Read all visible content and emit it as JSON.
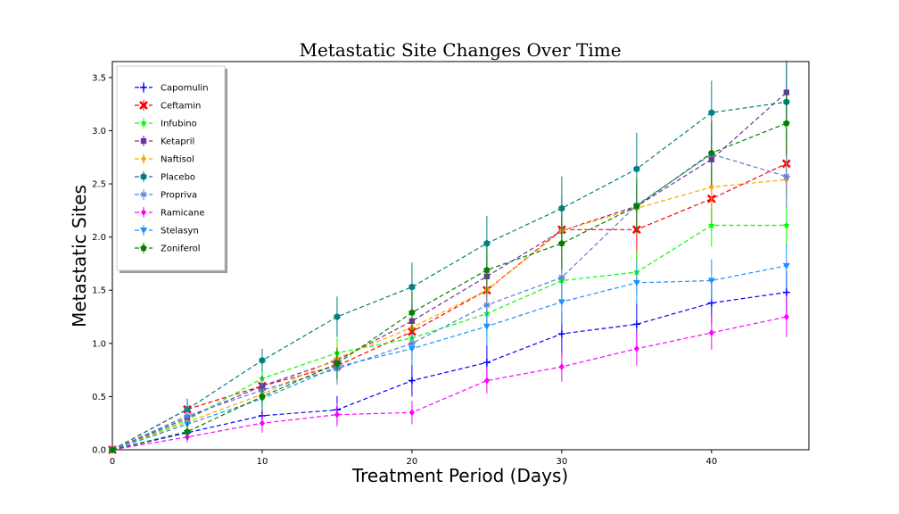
{
  "chart_data": {
    "type": "line",
    "title": "Metastatic Site Changes Over Time",
    "xlabel": "Treatment Period (Days)",
    "ylabel": "Metastatic Sites",
    "x": [
      0,
      5,
      10,
      15,
      20,
      25,
      30,
      35,
      40,
      45
    ],
    "xlim": [
      0,
      46.5
    ],
    "ylim": [
      0,
      3.65
    ],
    "xticks": [
      0,
      10,
      20,
      30,
      40
    ],
    "xtick_labels": [
      "0",
      "10",
      "20",
      "30",
      "40"
    ],
    "yticks": [
      0,
      0.5,
      1.0,
      1.5,
      2.0,
      2.5,
      3.0,
      3.5
    ],
    "ytick_labels": [
      "0.0",
      "0.5",
      "1.0",
      "1.5",
      "2.0",
      "2.5",
      "3.0",
      "3.5"
    ],
    "grid": false,
    "legend_position": "top-left",
    "series": [
      {
        "name": "Capomulin",
        "color": "#0000ff",
        "marker": "plus",
        "values": [
          0.0,
          0.16,
          0.32,
          0.375,
          0.65,
          0.82,
          1.09,
          1.18,
          1.38,
          1.48
        ],
        "errors": [
          0,
          0.07,
          0.1,
          0.13,
          0.15,
          0.16,
          0.2,
          0.2,
          0.2,
          0.2
        ]
      },
      {
        "name": "Ceftamin",
        "color": "#ff0000",
        "marker": "x",
        "values": [
          0.0,
          0.38,
          0.6,
          0.79,
          1.11,
          1.5,
          2.07,
          2.07,
          2.36,
          2.69
        ],
        "errors": [
          0,
          0.1,
          0.1,
          0.12,
          0.14,
          0.2,
          0.3,
          0.3,
          0.3,
          0.3
        ]
      },
      {
        "name": "Infubino",
        "color": "#00ff00",
        "marker": "star",
        "values": [
          0.0,
          0.28,
          0.67,
          0.91,
          1.05,
          1.28,
          1.59,
          1.67,
          2.11,
          2.11
        ],
        "errors": [
          0,
          0.09,
          0.1,
          0.14,
          0.15,
          0.2,
          0.25,
          0.2,
          0.2,
          0.2
        ]
      },
      {
        "name": "Ketapril",
        "color": "#7030a0",
        "marker": "square",
        "values": [
          0.0,
          0.3,
          0.6,
          0.84,
          1.21,
          1.63,
          2.06,
          2.29,
          2.73,
          3.36
        ],
        "errors": [
          0,
          0.09,
          0.1,
          0.12,
          0.15,
          0.2,
          0.2,
          0.2,
          0.25,
          0.3
        ]
      },
      {
        "name": "Naftisol",
        "color": "#ffa500",
        "marker": "diamond",
        "values": [
          0.0,
          0.26,
          0.52,
          0.86,
          1.15,
          1.5,
          2.06,
          2.27,
          2.47,
          2.54
        ],
        "errors": [
          0,
          0.09,
          0.1,
          0.14,
          0.15,
          0.2,
          0.2,
          0.2,
          0.2,
          0.2
        ]
      },
      {
        "name": "Placebo",
        "color": "#008080",
        "marker": "hexagon",
        "values": [
          0.0,
          0.38,
          0.84,
          1.25,
          1.53,
          1.94,
          2.27,
          2.64,
          3.17,
          3.27
        ],
        "errors": [
          0,
          0.1,
          0.11,
          0.19,
          0.23,
          0.26,
          0.3,
          0.34,
          0.3,
          0.36
        ]
      },
      {
        "name": "Propriva",
        "color": "#5a7fd8",
        "marker": "asterisk",
        "values": [
          0.0,
          0.32,
          0.56,
          0.76,
          1.0,
          1.36,
          1.62,
          2.3,
          2.78,
          2.57
        ],
        "errors": [
          0,
          0.09,
          0.1,
          0.15,
          0.15,
          0.2,
          0.2,
          0.2,
          0.3,
          0.3
        ]
      },
      {
        "name": "Ramicane",
        "color": "#ff00ff",
        "marker": "diamond",
        "values": [
          0.0,
          0.12,
          0.25,
          0.33,
          0.35,
          0.65,
          0.78,
          0.95,
          1.1,
          1.25
        ],
        "errors": [
          0,
          0.05,
          0.09,
          0.11,
          0.11,
          0.12,
          0.14,
          0.16,
          0.16,
          0.19
        ]
      },
      {
        "name": "Stelasyn",
        "color": "#1e90ff",
        "marker": "triangle-down",
        "values": [
          0.0,
          0.24,
          0.48,
          0.78,
          0.95,
          1.16,
          1.39,
          1.57,
          1.59,
          1.73
        ],
        "errors": [
          0,
          0.09,
          0.1,
          0.12,
          0.15,
          0.18,
          0.2,
          0.2,
          0.2,
          0.2
        ]
      },
      {
        "name": "Zoniferol",
        "color": "#008000",
        "marker": "pentagon",
        "values": [
          0.0,
          0.17,
          0.5,
          0.81,
          1.29,
          1.69,
          1.94,
          2.29,
          2.79,
          3.07
        ],
        "errors": [
          0,
          0.08,
          0.1,
          0.15,
          0.2,
          0.22,
          0.25,
          0.26,
          0.3,
          0.3
        ]
      }
    ]
  }
}
